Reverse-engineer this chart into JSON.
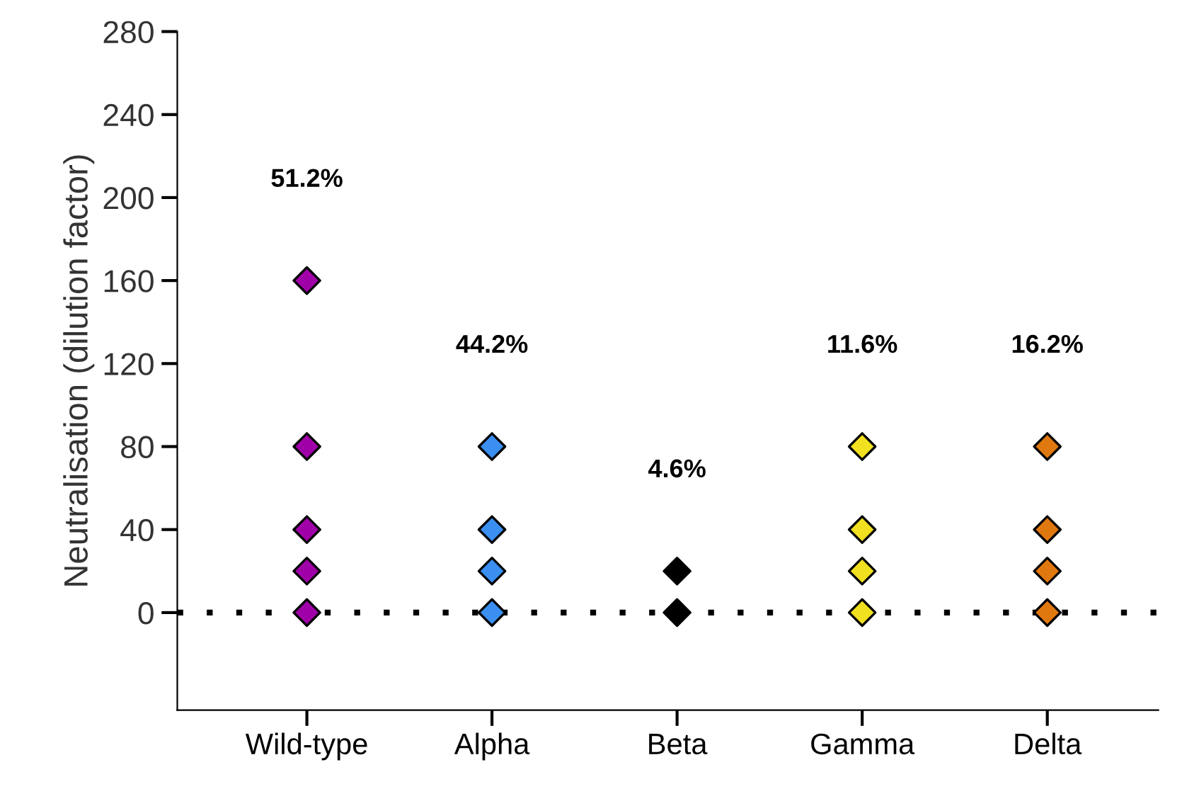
{
  "chart_data": {
    "type": "scatter",
    "ylabel": "Neutralisation (dilution factor)",
    "categories": [
      "Wild-type",
      "Alpha",
      "Beta",
      "Gamma",
      "Delta"
    ],
    "series": [
      {
        "x": [
          "Wild-type",
          "Wild-type",
          "Wild-type",
          "Wild-type",
          "Wild-type",
          "Alpha",
          "Alpha",
          "Alpha",
          "Alpha",
          "Beta",
          "Beta",
          "Gamma",
          "Gamma",
          "Gamma",
          "Gamma",
          "Delta",
          "Delta",
          "Delta",
          "Delta"
        ],
        "values": [
          0,
          20,
          40,
          80,
          160,
          0,
          20,
          40,
          80,
          0,
          20,
          0,
          20,
          40,
          80,
          0,
          20,
          40,
          80
        ],
        "colors": [
          "#a000a8",
          "#a000a8",
          "#a000a8",
          "#a000a8",
          "#a000a8",
          "#3a8ff0",
          "#3a8ff0",
          "#3a8ff0",
          "#3a8ff0",
          "#000000",
          "#000000",
          "#f0e020",
          "#f0e020",
          "#f0e020",
          "#f0e020",
          "#e07810",
          "#e07810",
          "#e07810",
          "#e07810"
        ]
      }
    ],
    "marker": "diamond",
    "ylim": [
      -47,
      280
    ],
    "yticks": [
      0,
      40,
      80,
      120,
      160,
      200,
      240,
      280
    ],
    "ref_lines": [
      {
        "axis": "y",
        "value": 0,
        "color": "#000000",
        "line_style": "dotted"
      }
    ],
    "annotations": [
      "51.2%",
      "44.2%",
      "4.6%",
      "11.6%",
      "16.2%"
    ],
    "grid": false,
    "legend": false
  }
}
